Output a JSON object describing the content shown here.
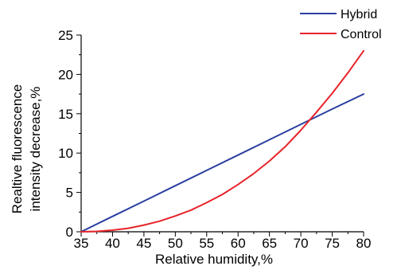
{
  "chart_data": {
    "type": "line",
    "xlabel": "Relative humidity,%",
    "ylabel_lines": [
      "Realtive fluorescence",
      "intensity decrease,%"
    ],
    "xlim": [
      35,
      80
    ],
    "ylim": [
      0,
      25
    ],
    "x_ticks": [
      35,
      40,
      45,
      50,
      55,
      60,
      65,
      70,
      75,
      80
    ],
    "y_ticks": [
      0,
      5,
      10,
      15,
      20,
      25
    ],
    "grid": false,
    "legend_position": "top-right",
    "series": [
      {
        "name": "Hybrid",
        "color": "#2b3fa0",
        "x": [
          35,
          40,
          45,
          50,
          55,
          60,
          65,
          70,
          75,
          80
        ],
        "y": [
          0,
          1.95,
          3.9,
          5.85,
          7.8,
          9.75,
          11.7,
          13.65,
          15.6,
          17.5
        ]
      },
      {
        "name": "Control",
        "color": "#e8232a",
        "x": [
          35,
          37.5,
          40,
          42.5,
          45,
          47.5,
          50,
          52.5,
          55,
          57.5,
          60,
          62.5,
          65,
          67.5,
          70,
          72.5,
          75,
          77.5,
          80
        ],
        "y": [
          0,
          0.05,
          0.2,
          0.45,
          0.85,
          1.35,
          2.0,
          2.75,
          3.7,
          4.75,
          6.0,
          7.4,
          9.0,
          10.8,
          12.9,
          15.2,
          17.6,
          20.2,
          23.0
        ]
      }
    ]
  }
}
